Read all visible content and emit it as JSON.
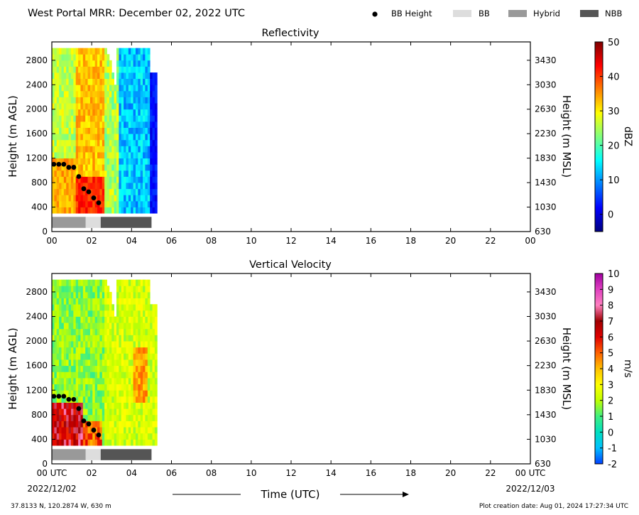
{
  "header": {
    "title": "West Portal MRR:  December 02, 2022 UTC",
    "legend": [
      {
        "label": "BB Height",
        "kind": "dot",
        "color": "#000000"
      },
      {
        "label": "BB",
        "kind": "box",
        "color": "#dddddd"
      },
      {
        "label": "Hybrid",
        "kind": "box",
        "color": "#999999"
      },
      {
        "label": "NBB",
        "kind": "box",
        "color": "#555555"
      }
    ]
  },
  "footer": {
    "location": "37.8133 N, 120.2874 W, 630 m",
    "creation": "Plot creation date: Aug 01, 2024 17:27:34 UTC",
    "xlabel": "Time (UTC)",
    "start_date": "2022/12/02",
    "end_date": "2022/12/03"
  },
  "colors": {
    "bb": "#dddddd",
    "hybrid": "#999999",
    "nbb": "#555555",
    "bb_dot": "#000000"
  },
  "chart_data": [
    {
      "type": "heatmap",
      "title": "Reflectivity",
      "xlabel": "",
      "ylabel": "Height (m AGL)",
      "ylabel_right": "Height (m MSL)",
      "x_ticks": [
        "00",
        "02",
        "04",
        "06",
        "08",
        "10",
        "12",
        "14",
        "16",
        "18",
        "20",
        "22",
        "00"
      ],
      "x_range_hours": [
        0,
        24
      ],
      "y_range": [
        0,
        3100
      ],
      "y_ticks": [
        0,
        400,
        800,
        1200,
        1600,
        2000,
        2400,
        2800
      ],
      "y_ticks_right": [
        630,
        1030,
        1430,
        1830,
        2230,
        2630,
        3030,
        3430
      ],
      "colorbar": {
        "label": "dBZ",
        "range": [
          -5,
          50
        ],
        "ticks": [
          0,
          10,
          20,
          30,
          40,
          50
        ],
        "colors": [
          "#00007f",
          "#0000ff",
          "#007fff",
          "#00ffff",
          "#7fff7f",
          "#ffff00",
          "#ff7f00",
          "#ff0000",
          "#7f0000"
        ]
      },
      "bb_height_points": [
        {
          "t": 0.1,
          "h": 1100
        },
        {
          "t": 0.35,
          "h": 1100
        },
        {
          "t": 0.6,
          "h": 1100
        },
        {
          "t": 0.85,
          "h": 1050
        },
        {
          "t": 1.1,
          "h": 1050
        },
        {
          "t": 1.35,
          "h": 900
        },
        {
          "t": 1.6,
          "h": 700
        },
        {
          "t": 1.85,
          "h": 650
        },
        {
          "t": 2.1,
          "h": 550
        },
        {
          "t": 2.35,
          "h": 470
        }
      ],
      "bb_type_bar": [
        {
          "type": "Hybrid",
          "start": 0.0,
          "end": 1.7
        },
        {
          "type": "BB",
          "start": 1.7,
          "end": 2.45
        },
        {
          "type": "NBB",
          "start": 2.45,
          "end": 5.0
        }
      ]
    },
    {
      "type": "heatmap",
      "title": "Vertical Velocity",
      "xlabel": "Time (UTC)",
      "ylabel": "Height (m AGL)",
      "ylabel_right": "Height (m MSL)",
      "x_ticks": [
        "00 UTC",
        "02",
        "04",
        "06",
        "08",
        "10",
        "12",
        "14",
        "16",
        "18",
        "20",
        "22",
        "00 UTC"
      ],
      "x_range_hours": [
        0,
        24
      ],
      "y_range": [
        0,
        3100
      ],
      "y_ticks": [
        0,
        400,
        800,
        1200,
        1600,
        2000,
        2400,
        2800
      ],
      "y_ticks_right": [
        630,
        1030,
        1430,
        1830,
        2230,
        2630,
        3030,
        3430
      ],
      "colorbar": {
        "label": "m/s",
        "range": [
          -2,
          10
        ],
        "ticks": [
          -2,
          -1,
          0,
          1,
          2,
          3,
          4,
          5,
          6,
          7,
          8,
          9,
          10
        ],
        "colors": [
          "#0040ff",
          "#00c0ff",
          "#00e0c0",
          "#40f080",
          "#c0ff00",
          "#ffff00",
          "#ffc000",
          "#ff6000",
          "#e00000",
          "#a00000",
          "#ff80c0",
          "#e040c0",
          "#a000a0"
        ]
      },
      "bb_height_points": [
        {
          "t": 0.1,
          "h": 1100
        },
        {
          "t": 0.35,
          "h": 1100
        },
        {
          "t": 0.6,
          "h": 1100
        },
        {
          "t": 0.85,
          "h": 1050
        },
        {
          "t": 1.1,
          "h": 1050
        },
        {
          "t": 1.35,
          "h": 900
        },
        {
          "t": 1.6,
          "h": 700
        },
        {
          "t": 1.85,
          "h": 650
        },
        {
          "t": 2.1,
          "h": 550
        },
        {
          "t": 2.35,
          "h": 470
        }
      ],
      "bb_type_bar": [
        {
          "type": "Hybrid",
          "start": 0.0,
          "end": 1.7
        },
        {
          "type": "BB",
          "start": 1.7,
          "end": 2.45
        },
        {
          "type": "NBB",
          "start": 2.45,
          "end": 5.0
        }
      ]
    }
  ]
}
